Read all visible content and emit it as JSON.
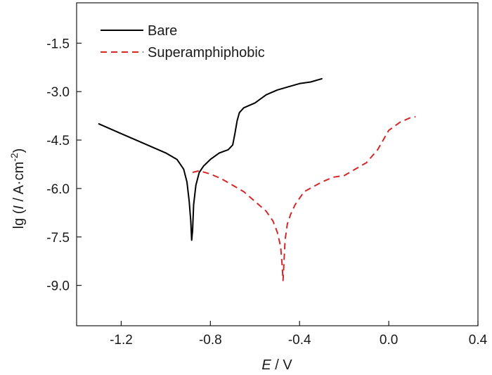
{
  "chart_data": {
    "type": "line",
    "xlabel": {
      "italic": "E",
      "rest": " / V"
    },
    "ylabel": {
      "prefix": "lg (",
      "italic": "I",
      "mid": " / A·cm",
      "sup": "-2",
      "suffix": ")"
    },
    "xlim": [
      -1.4,
      0.4
    ],
    "ylim": [
      -10.25,
      -0.25
    ],
    "x_ticks": [
      -1.2,
      -0.8,
      -0.4,
      0.0,
      0.4
    ],
    "x_tick_labels": [
      "-1.2",
      "-0.8",
      "-0.4",
      "0.0",
      "0.4"
    ],
    "y_ticks": [
      -1.5,
      -3.0,
      -4.5,
      -6.0,
      -7.5,
      -9.0
    ],
    "y_tick_labels": [
      "-1.5",
      "-3.0",
      "-4.5",
      "-6.0",
      "-7.5",
      "-9.0"
    ],
    "grid": false,
    "legend_position": "top-left",
    "series": [
      {
        "name": "Bare",
        "color": "#000000",
        "style": "solid",
        "points": [
          [
            -1.3,
            -4.0
          ],
          [
            -1.2,
            -4.3
          ],
          [
            -1.1,
            -4.6
          ],
          [
            -1.0,
            -4.9
          ],
          [
            -0.95,
            -5.1
          ],
          [
            -0.92,
            -5.4
          ],
          [
            -0.905,
            -5.8
          ],
          [
            -0.895,
            -6.4
          ],
          [
            -0.888,
            -7.0
          ],
          [
            -0.884,
            -7.6
          ],
          [
            -0.88,
            -7.3
          ],
          [
            -0.875,
            -6.5
          ],
          [
            -0.865,
            -5.9
          ],
          [
            -0.85,
            -5.5
          ],
          [
            -0.83,
            -5.3
          ],
          [
            -0.8,
            -5.1
          ],
          [
            -0.76,
            -4.9
          ],
          [
            -0.72,
            -4.8
          ],
          [
            -0.7,
            -4.65
          ],
          [
            -0.69,
            -4.3
          ],
          [
            -0.68,
            -3.9
          ],
          [
            -0.67,
            -3.65
          ],
          [
            -0.65,
            -3.5
          ],
          [
            -0.6,
            -3.35
          ],
          [
            -0.55,
            -3.1
          ],
          [
            -0.5,
            -2.95
          ],
          [
            -0.45,
            -2.85
          ],
          [
            -0.4,
            -2.75
          ],
          [
            -0.35,
            -2.7
          ],
          [
            -0.3,
            -2.6
          ]
        ]
      },
      {
        "name": "Superamphiphobic",
        "color": "#d62728",
        "style": "dashed",
        "points": [
          [
            -0.88,
            -5.5
          ],
          [
            -0.85,
            -5.45
          ],
          [
            -0.8,
            -5.55
          ],
          [
            -0.75,
            -5.7
          ],
          [
            -0.7,
            -5.9
          ],
          [
            -0.65,
            -6.1
          ],
          [
            -0.6,
            -6.4
          ],
          [
            -0.55,
            -6.7
          ],
          [
            -0.52,
            -7.0
          ],
          [
            -0.5,
            -7.35
          ],
          [
            -0.485,
            -7.8
          ],
          [
            -0.478,
            -8.4
          ],
          [
            -0.474,
            -8.85
          ],
          [
            -0.47,
            -8.3
          ],
          [
            -0.465,
            -7.6
          ],
          [
            -0.455,
            -7.1
          ],
          [
            -0.44,
            -6.8
          ],
          [
            -0.42,
            -6.5
          ],
          [
            -0.38,
            -6.1
          ],
          [
            -0.3,
            -5.8
          ],
          [
            -0.25,
            -5.65
          ],
          [
            -0.2,
            -5.6
          ],
          [
            -0.15,
            -5.4
          ],
          [
            -0.1,
            -5.2
          ],
          [
            -0.05,
            -4.8
          ],
          [
            0.0,
            -4.2
          ],
          [
            0.05,
            -3.95
          ],
          [
            0.1,
            -3.8
          ],
          [
            0.12,
            -3.78
          ]
        ]
      }
    ]
  }
}
